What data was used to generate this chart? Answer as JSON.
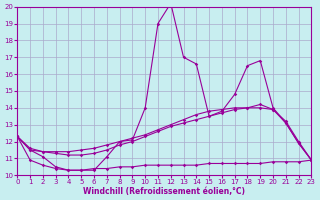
{
  "title": "",
  "xlabel": "Windchill (Refroidissement éolien,°C)",
  "background_color": "#c8eef0",
  "grid_color": "#aaaacc",
  "line_color": "#990099",
  "xlim": [
    0,
    23
  ],
  "ylim": [
    10,
    20
  ],
  "yticks": [
    10,
    11,
    12,
    13,
    14,
    15,
    16,
    17,
    18,
    19,
    20
  ],
  "xticks": [
    0,
    1,
    2,
    3,
    4,
    5,
    6,
    7,
    8,
    9,
    10,
    11,
    12,
    13,
    14,
    15,
    16,
    17,
    18,
    19,
    20,
    21,
    22,
    23
  ],
  "series1_x": [
    0,
    1,
    2,
    3,
    4,
    5,
    6,
    7,
    8,
    9,
    10,
    11,
    12,
    13,
    14,
    15,
    16,
    17,
    18,
    19,
    20,
    21,
    22,
    23
  ],
  "series1_y": [
    12.3,
    11.5,
    11.1,
    10.5,
    10.3,
    10.3,
    10.3,
    11.1,
    12.0,
    12.1,
    14.0,
    19.0,
    20.2,
    17.0,
    16.6,
    13.5,
    13.8,
    14.8,
    16.5,
    16.8,
    14.0,
    13.1,
    11.9,
    10.9
  ],
  "series2_x": [
    0,
    1,
    2,
    3,
    4,
    5,
    6,
    7,
    8,
    9,
    10,
    11,
    12,
    13,
    14,
    15,
    16,
    17,
    18,
    19,
    20,
    21,
    22,
    23
  ],
  "series2_y": [
    12.3,
    11.5,
    11.4,
    11.4,
    11.4,
    11.5,
    11.6,
    11.8,
    12.0,
    12.2,
    12.4,
    12.7,
    13.0,
    13.3,
    13.6,
    13.8,
    13.9,
    14.0,
    14.0,
    14.0,
    13.9,
    13.2,
    12.0,
    10.9
  ],
  "series3_x": [
    0,
    1,
    2,
    3,
    4,
    5,
    6,
    7,
    8,
    9,
    10,
    11,
    12,
    13,
    14,
    15,
    16,
    17,
    18,
    19,
    20,
    21,
    22,
    23
  ],
  "series3_y": [
    12.3,
    11.6,
    11.4,
    11.3,
    11.2,
    11.2,
    11.3,
    11.5,
    11.8,
    12.0,
    12.3,
    12.6,
    12.9,
    13.1,
    13.3,
    13.5,
    13.7,
    13.9,
    14.0,
    14.2,
    13.9,
    13.1,
    11.9,
    10.9
  ],
  "series4_x": [
    0,
    1,
    2,
    3,
    4,
    5,
    6,
    7,
    8,
    9,
    10,
    11,
    12,
    13,
    14,
    15,
    16,
    17,
    18,
    19,
    20,
    21,
    22,
    23
  ],
  "series4_y": [
    12.3,
    10.9,
    10.6,
    10.4,
    10.3,
    10.3,
    10.4,
    10.4,
    10.5,
    10.5,
    10.6,
    10.6,
    10.6,
    10.6,
    10.6,
    10.7,
    10.7,
    10.7,
    10.7,
    10.7,
    10.8,
    10.8,
    10.8,
    10.9
  ]
}
